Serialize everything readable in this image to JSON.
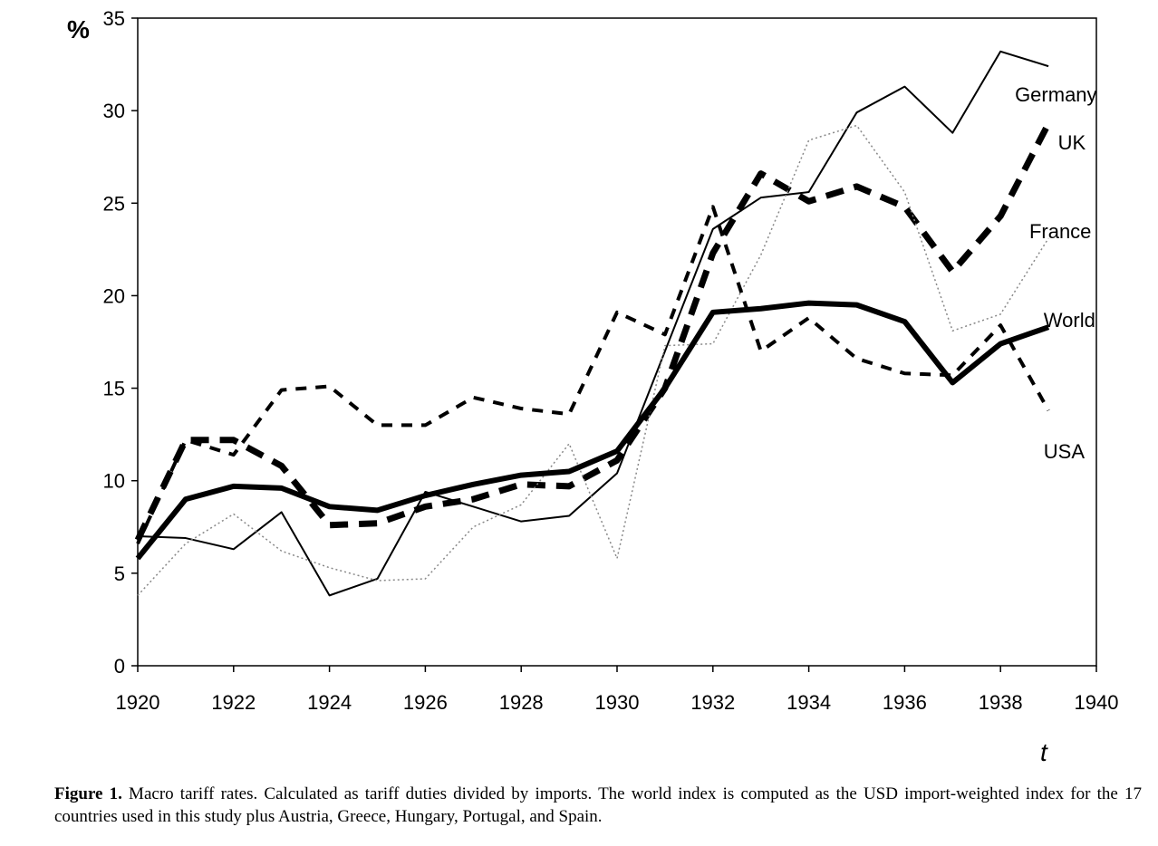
{
  "chart_data": {
    "type": "line",
    "title": "",
    "xlabel": "t",
    "ylabel": "%",
    "xlim": [
      1920,
      1940
    ],
    "ylim": [
      0,
      35
    ],
    "xticks": [
      1920,
      1922,
      1924,
      1926,
      1928,
      1930,
      1932,
      1934,
      1936,
      1938,
      1940
    ],
    "yticks": [
      0,
      5,
      10,
      15,
      20,
      25,
      30,
      35
    ],
    "x": [
      1920,
      1921,
      1922,
      1923,
      1924,
      1925,
      1926,
      1927,
      1928,
      1929,
      1930,
      1931,
      1932,
      1933,
      1934,
      1935,
      1936,
      1937,
      1938,
      1939
    ],
    "series": [
      {
        "name": "Germany",
        "style": "thin-solid",
        "values": [
          7.0,
          6.9,
          6.3,
          8.3,
          3.8,
          4.7,
          9.4,
          8.6,
          7.8,
          8.1,
          10.4,
          17.0,
          23.6,
          25.3,
          25.6,
          29.9,
          31.3,
          28.8,
          33.2,
          32.4
        ]
      },
      {
        "name": "UK",
        "style": "thick-dash",
        "values": [
          6.8,
          12.2,
          12.2,
          10.8,
          7.6,
          7.7,
          8.6,
          9.0,
          9.8,
          9.7,
          11.1,
          15.0,
          22.3,
          26.6,
          25.1,
          25.9,
          24.8,
          21.3,
          24.3,
          29.3
        ]
      },
      {
        "name": "France",
        "style": "thin-dotted",
        "values": [
          3.8,
          6.6,
          8.2,
          6.2,
          5.3,
          4.6,
          4.7,
          7.5,
          8.7,
          12.0,
          5.8,
          17.3,
          17.4,
          22.2,
          28.4,
          29.2,
          25.6,
          18.1,
          19.0,
          23.1
        ]
      },
      {
        "name": "World",
        "style": "heavy-solid",
        "values": [
          5.8,
          9.0,
          9.7,
          9.6,
          8.6,
          8.4,
          9.2,
          9.8,
          10.3,
          10.5,
          11.6,
          15.0,
          19.1,
          19.3,
          19.6,
          19.5,
          18.6,
          15.3,
          17.4,
          18.3
        ]
      },
      {
        "name": "USA",
        "style": "medium-dash",
        "values": [
          6.6,
          12.2,
          11.4,
          14.9,
          15.1,
          13.0,
          13.0,
          14.5,
          13.9,
          13.6,
          19.1,
          17.9,
          24.8,
          17.0,
          18.8,
          16.6,
          15.8,
          15.7,
          18.4,
          13.8
        ]
      }
    ]
  },
  "caption": {
    "label": "Figure 1.",
    "text": " Macro tariff rates. Calculated as tariff duties divided by imports. The world index is computed as the USD import-weighted index for the 17 countries used in this study plus Austria, Greece, Hungary, Portugal, and Spain."
  }
}
